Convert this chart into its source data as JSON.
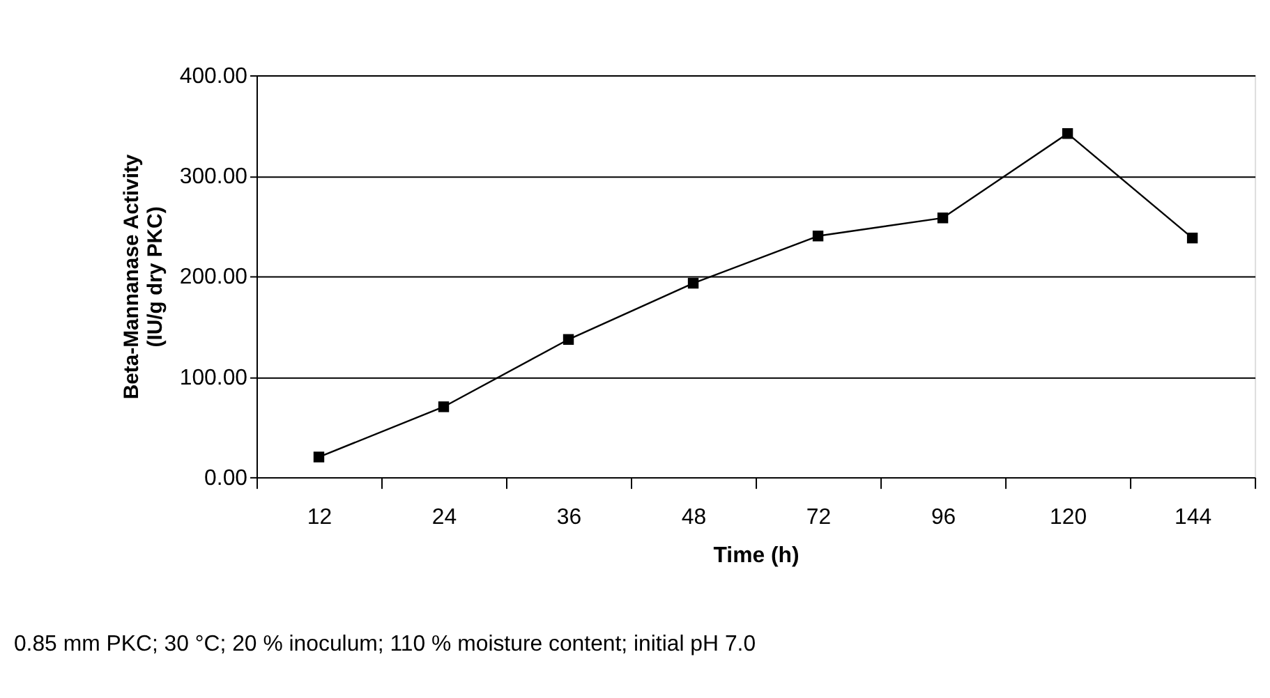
{
  "chart_data": {
    "type": "line",
    "xlabel": "Time (h)",
    "ylabel": "Beta-Mannanase Activity\n(IU/g dry PKC)",
    "categories": [
      "12",
      "24",
      "36",
      "48",
      "72",
      "96",
      "120",
      "144"
    ],
    "series": [
      {
        "color": "#000000",
        "values": [
          20,
          70,
          137,
          193,
          240,
          258,
          342,
          238
        ]
      }
    ],
    "ylim": [
      0,
      400
    ],
    "yticks": [
      {
        "value": 0,
        "label": "0.00"
      },
      {
        "value": 100,
        "label": "100.00"
      },
      {
        "value": 200,
        "label": "200.00"
      },
      {
        "value": 300,
        "label": "300.00"
      },
      {
        "value": 400,
        "label": "400.00"
      }
    ],
    "grid": "y",
    "marker": "square",
    "line_style": "solid",
    "legend": false,
    "annotations": [
      "0.85 mm PKC; 30 °C; 20 % inoculum; 110 % moisture content; initial pH 7.0"
    ]
  }
}
